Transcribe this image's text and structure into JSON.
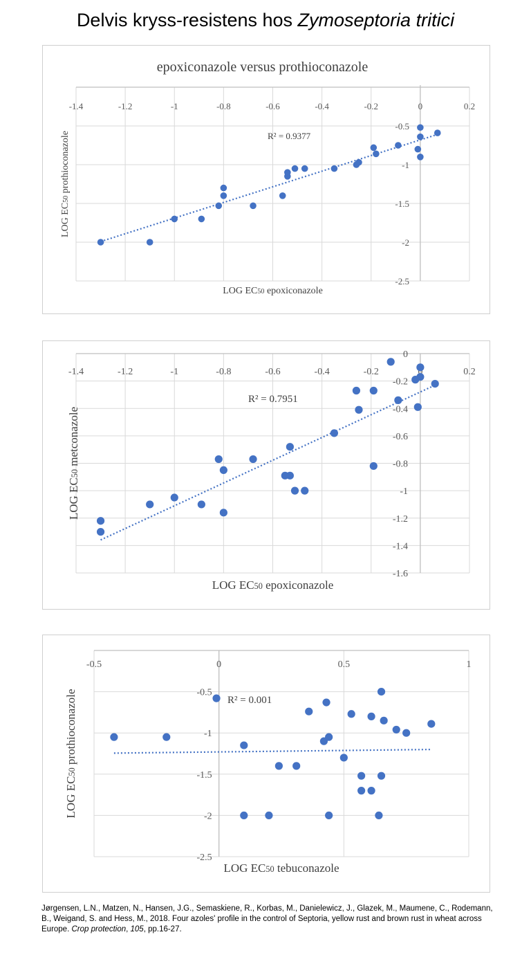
{
  "page": {
    "title_main": "Delvis kryss-resistens hos ",
    "title_species": "Zymoseptoria tritici"
  },
  "chart_data": [
    {
      "type": "scatter",
      "title": "epoxiconazole versus prothioconazole",
      "xlabel_pre": "LOG EC",
      "xlabel_sub": "50",
      "xlabel_post": " epoxiconazole",
      "ylabel_pre": "LOG EC",
      "ylabel_sub": "50",
      "ylabel_post": " prothioconazole",
      "r2_label": "R² = 0.9377",
      "xlim": [
        -1.4,
        0.2
      ],
      "ylim": [
        -2.5,
        0
      ],
      "xticks": [
        "-1.4",
        "-1.2",
        "-1",
        "-0.8",
        "-0.6",
        "-0.4",
        "-0.2",
        "0",
        "0.2"
      ],
      "yticks": [
        "-0.5",
        "-1",
        "-1.5",
        "-2",
        "-2.5"
      ],
      "trendline": {
        "slope": 1.009,
        "intercept": -0.68
      },
      "points": [
        [
          -1.3,
          -2.0
        ],
        [
          -1.1,
          -2.0
        ],
        [
          -1.0,
          -1.7
        ],
        [
          -0.89,
          -1.7
        ],
        [
          -0.82,
          -1.53
        ],
        [
          -0.8,
          -1.3
        ],
        [
          -0.8,
          -1.4
        ],
        [
          -0.68,
          -1.53
        ],
        [
          -0.56,
          -1.4
        ],
        [
          -0.54,
          -1.1
        ],
        [
          -0.54,
          -1.15
        ],
        [
          -0.51,
          -1.05
        ],
        [
          -0.47,
          -1.05
        ],
        [
          -0.35,
          -1.05
        ],
        [
          -0.26,
          -1.0
        ],
        [
          -0.25,
          -0.97
        ],
        [
          -0.19,
          -0.78
        ],
        [
          -0.18,
          -0.86
        ],
        [
          -0.09,
          -0.75
        ],
        [
          -0.01,
          -0.8
        ],
        [
          0.0,
          -0.64
        ],
        [
          0.0,
          -0.52
        ],
        [
          0.0,
          -0.9
        ],
        [
          0.07,
          -0.59
        ]
      ]
    },
    {
      "type": "scatter",
      "title": "",
      "xlabel_pre": "LOG EC",
      "xlabel_sub": "50",
      "xlabel_post": " epoxiconazole",
      "ylabel_pre": "LOG EC",
      "ylabel_sub": "50",
      "ylabel_post": " metconazole",
      "r2_label": "R² = 0.7951",
      "xlim": [
        -1.4,
        0.2
      ],
      "ylim": [
        -1.6,
        0
      ],
      "xticks": [
        "-1.4",
        "-1.2",
        "-1",
        "-0.8",
        "-0.6",
        "-0.4",
        "-0.2",
        "0",
        "0.2"
      ],
      "yticks": [
        "0",
        "-0.2",
        "-0.4",
        "-0.6",
        "-0.8",
        "-1",
        "-1.2",
        "-1.4",
        "-1.6"
      ],
      "trendline": {
        "slope": 0.83,
        "intercept": -0.28
      },
      "points": [
        [
          -1.3,
          -1.22
        ],
        [
          -1.3,
          -1.3
        ],
        [
          -1.1,
          -1.1
        ],
        [
          -1.0,
          -1.05
        ],
        [
          -0.89,
          -1.1
        ],
        [
          -0.82,
          -0.77
        ],
        [
          -0.8,
          -0.85
        ],
        [
          -0.8,
          -1.16
        ],
        [
          -0.68,
          -0.77
        ],
        [
          -0.55,
          -0.89
        ],
        [
          -0.53,
          -0.68
        ],
        [
          -0.53,
          -0.89
        ],
        [
          -0.51,
          -1.0
        ],
        [
          -0.47,
          -1.0
        ],
        [
          -0.35,
          -0.58
        ],
        [
          -0.26,
          -0.27
        ],
        [
          -0.25,
          -0.41
        ],
        [
          -0.19,
          -0.27
        ],
        [
          -0.19,
          -0.82
        ],
        [
          -0.12,
          -0.06
        ],
        [
          -0.09,
          -0.34
        ],
        [
          -0.02,
          -0.19
        ],
        [
          -0.01,
          -0.39
        ],
        [
          0.0,
          -0.1
        ],
        [
          0.0,
          -0.17
        ],
        [
          0.06,
          -0.22
        ]
      ]
    },
    {
      "type": "scatter",
      "title": "",
      "xlabel_pre": "LOG EC",
      "xlabel_sub": "50",
      "xlabel_post": " tebuconazole",
      "ylabel_pre": "LOG EC",
      "ylabel_sub": "50",
      "ylabel_post": " prothioconazole",
      "r2_label": "R² = 0.001",
      "xlim": [
        -0.5,
        1.0
      ],
      "ylim": [
        -2.5,
        0
      ],
      "xticks": [
        "-0.5",
        "0",
        "0.5",
        "1"
      ],
      "yticks": [
        "-0.5",
        "-1",
        "-1.5",
        "-2",
        "-2.5"
      ],
      "trendline": {
        "slope": 0.035,
        "intercept": -1.23,
        "x_start": -0.42,
        "x_end": 0.85
      },
      "points": [
        [
          -0.42,
          -1.05
        ],
        [
          -0.21,
          -1.05
        ],
        [
          -0.01,
          -0.58
        ],
        [
          0.1,
          -1.15
        ],
        [
          0.1,
          -2.0
        ],
        [
          0.2,
          -2.0
        ],
        [
          0.24,
          -1.4
        ],
        [
          0.31,
          -1.4
        ],
        [
          0.36,
          -0.74
        ],
        [
          0.42,
          -1.1
        ],
        [
          0.43,
          -0.63
        ],
        [
          0.44,
          -1.05
        ],
        [
          0.44,
          -2.0
        ],
        [
          0.5,
          -1.3
        ],
        [
          0.53,
          -0.77
        ],
        [
          0.57,
          -1.52
        ],
        [
          0.57,
          -1.7
        ],
        [
          0.61,
          -0.8
        ],
        [
          0.61,
          -1.7
        ],
        [
          0.64,
          -2.0
        ],
        [
          0.65,
          -0.5
        ],
        [
          0.65,
          -1.52
        ],
        [
          0.66,
          -0.85
        ],
        [
          0.71,
          -0.96
        ],
        [
          0.75,
          -1.0
        ],
        [
          0.85,
          -0.89
        ]
      ]
    }
  ],
  "reference": {
    "text": "Jørgensen, L.N., Matzen, N., Hansen, J.G., Semaskiene, R., Korbas, M., Danielewicz, J., Glazek, M., Maumene, C., Rodemann, B., Weigand, S. and Hess, M., 2018. Four azoles' profile in the control of Septoria, yellow rust and brown rust in wheat across Europe. ",
    "journal": "Crop protection",
    "volume": "105",
    "pages": ", pp.16-27."
  },
  "colors": {
    "marker": "#4472c4",
    "grid": "#d9d9d9",
    "axis": "#bfbfbf"
  }
}
